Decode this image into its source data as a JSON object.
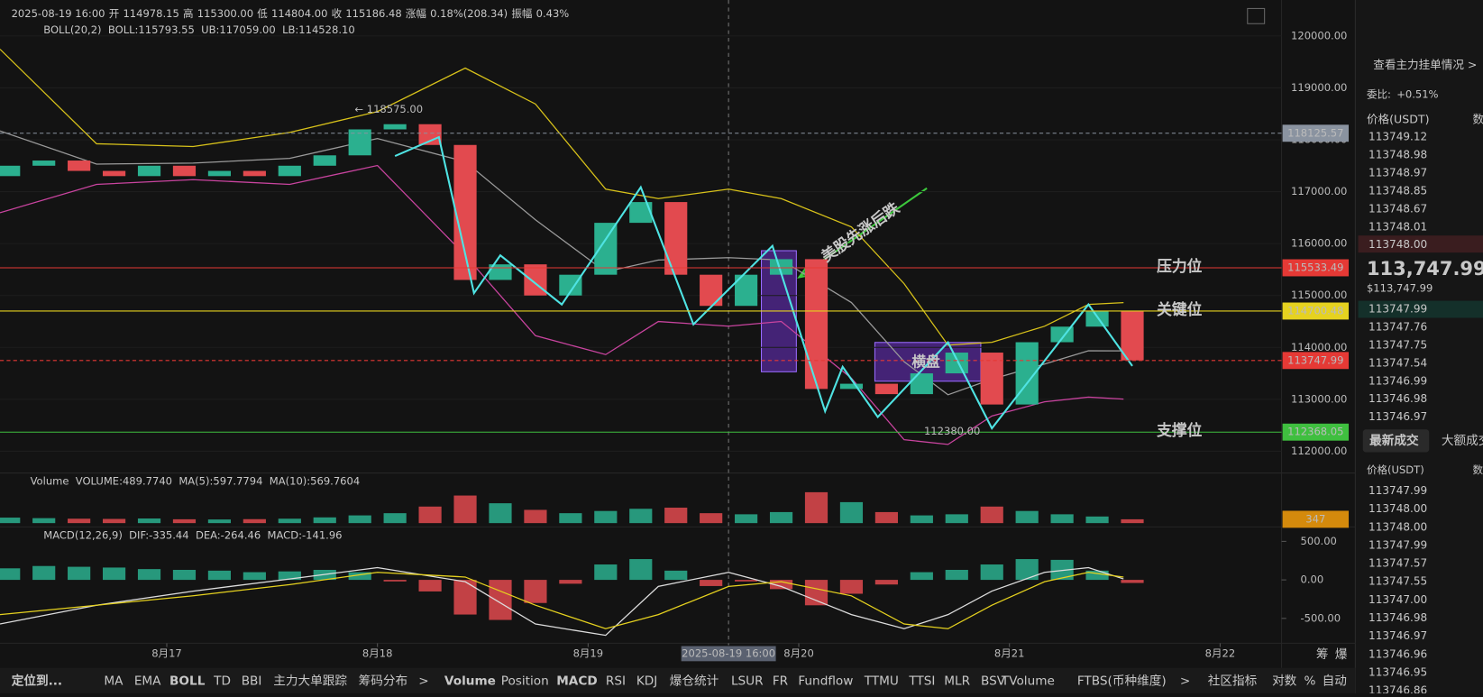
{
  "header": {
    "datetime": "2025-08-19 16:00",
    "open_label": "开",
    "open": "114978.15",
    "high_label": "高",
    "high": "115300.00",
    "low_label": "低",
    "low": "114804.00",
    "close_label": "收",
    "close": "115186.48",
    "change_label": "涨幅",
    "change": "0.18%(208.34)",
    "amp_label": "振幅",
    "amp": "0.43%",
    "boll_name": "BOLL(20,2)",
    "boll": "BOLL:115793.55",
    "ub": "UB:117059.00",
    "lb": "LB:114528.10",
    "vol_name": "Volume",
    "vol": "VOLUME:489.7740",
    "ma5": "MA(5):597.7794",
    "ma10": "MA(10):569.7604",
    "macd_name": "MACD(12,26,9)",
    "dif": "DIF:-335.44",
    "dea": "DEA:-264.46",
    "macd": "MACD:-141.96"
  },
  "chart_data": {
    "type": "candlestick",
    "xlim": [
      -19,
      127
    ],
    "xticks": [
      {
        "value": 0,
        "label": "8月17"
      },
      {
        "value": 24,
        "label": "8月18"
      },
      {
        "value": 48,
        "label": "8月19"
      },
      {
        "value": 72,
        "label": "8月20"
      },
      {
        "value": 96,
        "label": "8月21"
      },
      {
        "value": 120,
        "label": "8月22"
      }
    ],
    "crosshair": {
      "value": 64,
      "label": "2025-08-19 16:00"
    },
    "ylim": [
      112000,
      120000
    ],
    "yticks": [
      {
        "value": 120000,
        "label": "120000.00"
      },
      {
        "value": 119000,
        "label": "119000.00"
      },
      {
        "value": 118000,
        "label": "118000.00"
      },
      {
        "value": 117000,
        "label": "117000.00"
      },
      {
        "value": 116000,
        "label": "116000.00"
      },
      {
        "value": 115000,
        "label": "115000.00"
      },
      {
        "value": 114000,
        "label": "114000.00"
      },
      {
        "value": 113000,
        "label": "113000.00"
      },
      {
        "value": 112000,
        "label": "112000.00"
      }
    ],
    "up_color": "#2bb08f",
    "down_color": "#e24a4f",
    "candles": {
      "x": [
        -18,
        -14,
        -10,
        -6,
        -2,
        2,
        6,
        10,
        14,
        18,
        22,
        26,
        30,
        34,
        38,
        42,
        46,
        50,
        54,
        58,
        62,
        66,
        70,
        74,
        78,
        82,
        86,
        90,
        94,
        98,
        102,
        106,
        110
      ],
      "open": [
        117300,
        117500,
        117600,
        117400,
        117300,
        117500,
        117300,
        117400,
        117300,
        117500,
        117700,
        118200,
        118300,
        117900,
        115300,
        115600,
        115000,
        115400,
        116400,
        116800,
        115400,
        114800,
        115400,
        115700,
        113200,
        113300,
        113100,
        113500,
        113900,
        112900,
        114100,
        114400,
        114700
      ],
      "close": [
        117500,
        117600,
        117400,
        117300,
        117500,
        117300,
        117400,
        117300,
        117500,
        117700,
        118200,
        118300,
        117900,
        115300,
        115600,
        115000,
        115400,
        116400,
        116800,
        115400,
        114800,
        115400,
        115700,
        113200,
        113300,
        113100,
        113500,
        113900,
        112900,
        114100,
        114400,
        114700,
        113750
      ]
    },
    "bollinger": {
      "x": [
        -19,
        -8,
        3,
        14,
        24,
        34,
        42,
        50,
        56,
        64,
        70,
        78,
        84,
        89,
        94,
        100,
        105,
        109
      ],
      "upper": [
        119745,
        117923,
        117869,
        118142,
        118543,
        119381,
        118689,
        117049,
        116867,
        117049,
        116867,
        116321,
        115228,
        114044,
        114098,
        114408,
        114827,
        114863
      ],
      "mid": [
        118170,
        117532,
        117551,
        117641,
        118024,
        117578,
        116458,
        115456,
        115683,
        115729,
        115683,
        114864,
        113725,
        113088,
        113388,
        113680,
        113935,
        113934
      ],
      "lower": [
        116594,
        117140,
        117232,
        117140,
        117504,
        115774,
        114226,
        113862,
        114499,
        114408,
        114499,
        113406,
        112222,
        112131,
        112678,
        112951,
        113042,
        113005
      ]
    },
    "zigzag": {
      "x": [
        26,
        31,
        35,
        38,
        45,
        54,
        60,
        69,
        75,
        77,
        81,
        89,
        94,
        105,
        110
      ],
      "values": [
        117687,
        118051,
        115046,
        115774,
        114827,
        117086,
        114444,
        115956,
        112769,
        113625,
        112659,
        114098,
        112441,
        114827,
        113643
      ]
    },
    "levels": [
      {
        "value": 118125.57,
        "color": "#8a93a0",
        "dashed": true
      },
      {
        "value": 115533.49,
        "color": "#e53935",
        "name": "压力位"
      },
      {
        "value": 114700.48,
        "color": "#e6d21f",
        "name": "关键位"
      },
      {
        "value": 113747.99,
        "color": "#e53935",
        "dashed": true
      },
      {
        "value": 112368.05,
        "color": "#3fbf3f",
        "name": "支撑位"
      }
    ],
    "annotations": {
      "high_mark": "← 118575.00",
      "low_mark": "112380.00",
      "rally": "美股先涨后跌",
      "range": "横盘"
    },
    "volume": {
      "ylim": [
        0,
        3000
      ],
      "current": 347,
      "values": [
        500,
        450,
        400,
        380,
        420,
        350,
        330,
        360,
        400,
        520,
        700,
        900,
        1500,
        2500,
        1800,
        1200,
        900,
        1100,
        1300,
        1400,
        900,
        800,
        1000,
        2800,
        1900,
        1000,
        700,
        800,
        1500,
        1100,
        800,
        600,
        347
      ]
    },
    "macd": {
      "ylim": [
        -700,
        700
      ],
      "yticks": [
        {
          "value": 500,
          "label": "500.00"
        },
        {
          "value": 0,
          "label": "0.00"
        },
        {
          "value": -500,
          "label": "-500.00"
        }
      ],
      "hist": [
        150,
        180,
        170,
        160,
        140,
        130,
        120,
        100,
        110,
        130,
        100,
        -20,
        -150,
        -450,
        -520,
        -300,
        -50,
        200,
        270,
        120,
        -80,
        -20,
        -120,
        -330,
        -180,
        -60,
        100,
        130,
        200,
        270,
        260,
        120,
        -40
      ],
      "x": [
        -19,
        -8,
        3,
        14,
        24,
        34,
        42,
        50,
        56,
        64,
        70,
        78,
        84,
        89,
        94,
        100,
        105,
        109
      ],
      "dif": [
        -573,
        -329,
        -146,
        12,
        159,
        -24,
        -573,
        -720,
        -85,
        98,
        -85,
        -451,
        -634,
        -451,
        -146,
        98,
        159,
        12
      ],
      "dea": [
        -451,
        -329,
        -207,
        -61,
        98,
        37,
        -329,
        -634,
        -451,
        -85,
        -24,
        -207,
        -573,
        -634,
        -329,
        -24,
        98,
        37
      ]
    }
  },
  "right_panel": {
    "link": "查看主力挂单情况 >",
    "ratio_label": "委比:",
    "ratio": "+0.51%",
    "price_head": "价格(USDT)",
    "qty_head": "数",
    "asks": [
      "113749.12",
      "113748.98",
      "113748.97",
      "113748.85",
      "113748.67",
      "113748.01",
      "113748.00"
    ],
    "last": "113,747.99",
    "last_usd": "$113,747.99",
    "bids": [
      "113747.99",
      "113747.76",
      "113747.75",
      "113747.54",
      "113746.99",
      "113746.98",
      "113746.97"
    ],
    "tab_active": "最新成交",
    "tab_other": "大额成交",
    "trade_price_head": "价格(USDT)",
    "trade_qty_head": "数",
    "trades": [
      "113747.99",
      "113748.00",
      "113748.00",
      "113747.99",
      "113747.57",
      "113747.55",
      "113747.00",
      "113746.98",
      "113746.97",
      "113746.96",
      "113746.95",
      "113746.86"
    ]
  },
  "toolbar": {
    "items": [
      "定位到...",
      "MA",
      "EMA",
      "BOLL",
      "TD",
      "BBI",
      "主力大单跟踪",
      "筹码分布",
      ">",
      "Volume",
      "Position",
      "MACD",
      "RSI",
      "KDJ",
      "爆仓统计",
      "LSUR",
      "FR",
      "Fundflow",
      "TTMU",
      "TTSI",
      "MLR",
      "BSV",
      "TVolume",
      "FTBS(币种维度)",
      ">",
      "社区指标",
      "对数",
      "%",
      "自动"
    ],
    "chips": "筹",
    "liq": "爆"
  }
}
